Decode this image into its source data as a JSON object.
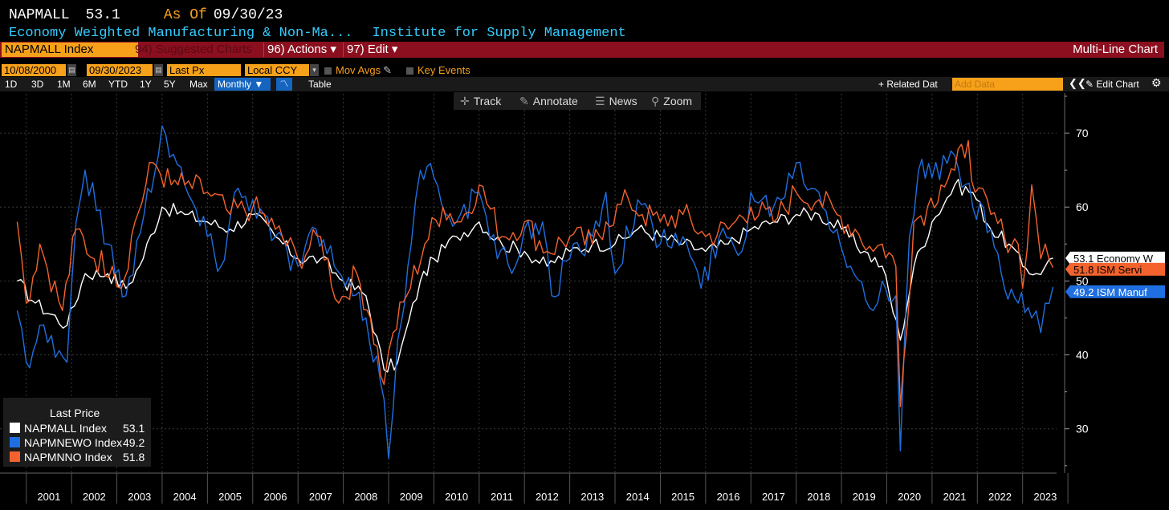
{
  "header": {
    "ticker": "NAPMALL",
    "price": "53.1",
    "as_of_label": "As Of",
    "as_of_date": "09/30/23",
    "description": "Economy Weighted Manufacturing & Non-Ma...",
    "source": "Institute for Supply Management"
  },
  "toolbar": {
    "index_field": "NAPMALL Index",
    "suggested": "94) Suggested Charts",
    "actions": "96) Actions ▾",
    "edit": "97) Edit ▾",
    "chart_type": "Multi-Line Chart"
  },
  "controls": {
    "start_date": "10/08/2000",
    "end_date": "09/30/2023",
    "field": "Last Px",
    "currency": "Local CCY",
    "mov_avgs": "Mov Avgs",
    "key_events": "Key Events",
    "periods": [
      "1D",
      "3D",
      "1M",
      "6M",
      "YTD",
      "1Y",
      "5Y",
      "Max"
    ],
    "frequency": "Monthly ▼",
    "table": "Table",
    "related": "+ Related Dat",
    "add_data_placeholder": "Add Data",
    "edit_chart": "✎ Edit Chart"
  },
  "tools": {
    "track": "Track",
    "annotate": "Annotate",
    "news": "News",
    "zoom": "Zoom"
  },
  "legend": {
    "title": "Last Price",
    "items": [
      {
        "name": "NAPMALL Index",
        "value": "53.1",
        "color": "#ffffff"
      },
      {
        "name": "NAPMNEWO Index",
        "value": "49.2",
        "color": "#1f6fe0"
      },
      {
        "name": "NAPMNNO Index",
        "value": "51.8",
        "color": "#f4632d"
      }
    ]
  },
  "end_labels": [
    {
      "text": "53.1 Economy W",
      "value": 53.1,
      "bg": "#ffffff",
      "fg": "#000000"
    },
    {
      "text": "51.8 ISM Servi",
      "value": 51.8,
      "bg": "#f4632d",
      "fg": "#000000"
    },
    {
      "text": "49.2 ISM Manuf",
      "value": 49.2,
      "bg": "#1f6fe0",
      "fg": "#ffffff"
    }
  ],
  "chart_data": {
    "type": "line",
    "x_start": "2000-10",
    "frequency": "monthly",
    "x_ticks": [
      "2001",
      "2002",
      "2003",
      "2004",
      "2005",
      "2006",
      "2007",
      "2008",
      "2009",
      "2010",
      "2011",
      "2012",
      "2013",
      "2014",
      "2015",
      "2016",
      "2017",
      "2018",
      "2019",
      "2020",
      "2021",
      "2022",
      "2023"
    ],
    "y_ticks": [
      30,
      40,
      50,
      60,
      70
    ],
    "ylim": [
      24,
      75
    ],
    "xlabel": "",
    "ylabel": "",
    "series": [
      {
        "name": "NAPMALL Index",
        "color": "#ffffff",
        "anchors": [
          [
            2000.8,
            50
          ],
          [
            2001.2,
            47
          ],
          [
            2001.9,
            44
          ],
          [
            2002.3,
            51
          ],
          [
            2002.8,
            51
          ],
          [
            2003.2,
            49
          ],
          [
            2003.5,
            52
          ],
          [
            2004.0,
            60
          ],
          [
            2004.5,
            59
          ],
          [
            2005.0,
            58
          ],
          [
            2005.5,
            57
          ],
          [
            2006.0,
            59
          ],
          [
            2006.5,
            56
          ],
          [
            2007.0,
            53
          ],
          [
            2007.5,
            53
          ],
          [
            2008.0,
            50
          ],
          [
            2008.5,
            48
          ],
          [
            2008.9,
            38
          ],
          [
            2009.2,
            39
          ],
          [
            2009.7,
            50
          ],
          [
            2010.0,
            53
          ],
          [
            2010.5,
            56
          ],
          [
            2011.0,
            58
          ],
          [
            2011.5,
            55
          ],
          [
            2012.0,
            54
          ],
          [
            2012.5,
            52
          ],
          [
            2013.0,
            54
          ],
          [
            2013.5,
            55
          ],
          [
            2014.0,
            55
          ],
          [
            2014.5,
            57
          ],
          [
            2015.0,
            56
          ],
          [
            2015.5,
            55
          ],
          [
            2016.0,
            54
          ],
          [
            2016.5,
            55
          ],
          [
            2017.0,
            57
          ],
          [
            2017.5,
            58
          ],
          [
            2018.0,
            59
          ],
          [
            2018.5,
            59
          ],
          [
            2019.0,
            57
          ],
          [
            2019.5,
            54
          ],
          [
            2019.9,
            52
          ],
          [
            2020.3,
            42
          ],
          [
            2020.6,
            52
          ],
          [
            2021.0,
            58
          ],
          [
            2021.5,
            63
          ],
          [
            2021.9,
            62
          ],
          [
            2022.3,
            57
          ],
          [
            2022.7,
            55
          ],
          [
            2023.0,
            52
          ],
          [
            2023.3,
            51
          ],
          [
            2023.5,
            52
          ],
          [
            2023.67,
            53.1
          ]
        ]
      },
      {
        "name": "NAPMNEWO Index",
        "color": "#1f6fe0",
        "anchors": [
          [
            2000.8,
            46
          ],
          [
            2001.0,
            39
          ],
          [
            2001.3,
            44
          ],
          [
            2001.9,
            39
          ],
          [
            2002.1,
            58
          ],
          [
            2002.3,
            65
          ],
          [
            2002.8,
            55
          ],
          [
            2003.2,
            48
          ],
          [
            2003.6,
            59
          ],
          [
            2004.0,
            71
          ],
          [
            2004.5,
            63
          ],
          [
            2005.0,
            56
          ],
          [
            2005.3,
            52
          ],
          [
            2005.6,
            62
          ],
          [
            2006.0,
            61
          ],
          [
            2006.5,
            56
          ],
          [
            2007.0,
            52
          ],
          [
            2007.4,
            57
          ],
          [
            2007.8,
            52
          ],
          [
            2008.2,
            48
          ],
          [
            2008.5,
            45
          ],
          [
            2008.9,
            34
          ],
          [
            2009.0,
            26
          ],
          [
            2009.2,
            42
          ],
          [
            2009.5,
            55
          ],
          [
            2009.7,
            65
          ],
          [
            2010.0,
            64
          ],
          [
            2010.5,
            58
          ],
          [
            2011.0,
            62
          ],
          [
            2011.4,
            53
          ],
          [
            2011.8,
            52
          ],
          [
            2012.0,
            57
          ],
          [
            2012.4,
            58
          ],
          [
            2012.6,
            48
          ],
          [
            2013.0,
            53
          ],
          [
            2013.5,
            56
          ],
          [
            2013.8,
            62
          ],
          [
            2014.0,
            51
          ],
          [
            2014.5,
            61
          ],
          [
            2015.0,
            55
          ],
          [
            2015.5,
            56
          ],
          [
            2015.9,
            49
          ],
          [
            2016.3,
            56
          ],
          [
            2016.8,
            54
          ],
          [
            2017.0,
            62
          ],
          [
            2017.5,
            60
          ],
          [
            2018.0,
            66
          ],
          [
            2018.5,
            62
          ],
          [
            2018.9,
            57
          ],
          [
            2019.2,
            52
          ],
          [
            2019.7,
            46
          ],
          [
            2019.9,
            50
          ],
          [
            2020.2,
            48
          ],
          [
            2020.3,
            27
          ],
          [
            2020.5,
            56
          ],
          [
            2020.7,
            65
          ],
          [
            2021.0,
            64
          ],
          [
            2021.5,
            67
          ],
          [
            2021.9,
            60
          ],
          [
            2022.3,
            57
          ],
          [
            2022.6,
            49
          ],
          [
            2022.9,
            47
          ],
          [
            2023.2,
            45
          ],
          [
            2023.4,
            43
          ],
          [
            2023.5,
            47
          ],
          [
            2023.67,
            49.2
          ]
        ]
      },
      {
        "name": "NAPMNNO Index",
        "color": "#f4632d",
        "anchors": [
          [
            2000.8,
            58
          ],
          [
            2001.0,
            47
          ],
          [
            2001.3,
            55
          ],
          [
            2001.8,
            46
          ],
          [
            2002.1,
            57
          ],
          [
            2002.5,
            53
          ],
          [
            2002.9,
            52
          ],
          [
            2003.1,
            49
          ],
          [
            2003.4,
            58
          ],
          [
            2003.8,
            66
          ],
          [
            2004.2,
            63
          ],
          [
            2004.5,
            63
          ],
          [
            2005.0,
            62
          ],
          [
            2005.5,
            59
          ],
          [
            2006.0,
            60
          ],
          [
            2006.5,
            57
          ],
          [
            2007.0,
            53
          ],
          [
            2007.5,
            56
          ],
          [
            2007.9,
            47
          ],
          [
            2008.3,
            51
          ],
          [
            2008.6,
            45
          ],
          [
            2008.9,
            36
          ],
          [
            2009.1,
            43
          ],
          [
            2009.4,
            48
          ],
          [
            2009.8,
            55
          ],
          [
            2010.2,
            60
          ],
          [
            2010.6,
            58
          ],
          [
            2011.0,
            63
          ],
          [
            2011.5,
            56
          ],
          [
            2012.0,
            58
          ],
          [
            2012.5,
            54
          ],
          [
            2013.0,
            56
          ],
          [
            2013.5,
            55
          ],
          [
            2013.8,
            58
          ],
          [
            2014.3,
            61
          ],
          [
            2014.6,
            59
          ],
          [
            2015.0,
            58
          ],
          [
            2015.5,
            59
          ],
          [
            2016.0,
            56
          ],
          [
            2016.5,
            57
          ],
          [
            2017.0,
            60
          ],
          [
            2017.5,
            58
          ],
          [
            2018.0,
            62
          ],
          [
            2018.5,
            61
          ],
          [
            2018.9,
            59
          ],
          [
            2019.3,
            57
          ],
          [
            2019.7,
            54
          ],
          [
            2019.9,
            55
          ],
          [
            2020.2,
            52
          ],
          [
            2020.3,
            33
          ],
          [
            2020.6,
            58
          ],
          [
            2020.9,
            60
          ],
          [
            2021.2,
            63
          ],
          [
            2021.5,
            65
          ],
          [
            2021.8,
            69
          ],
          [
            2021.95,
            62
          ],
          [
            2022.3,
            59
          ],
          [
            2022.6,
            56
          ],
          [
            2022.9,
            55
          ],
          [
            2023.0,
            49
          ],
          [
            2023.2,
            63
          ],
          [
            2023.4,
            53
          ],
          [
            2023.5,
            55
          ],
          [
            2023.67,
            51.8
          ]
        ]
      }
    ]
  }
}
